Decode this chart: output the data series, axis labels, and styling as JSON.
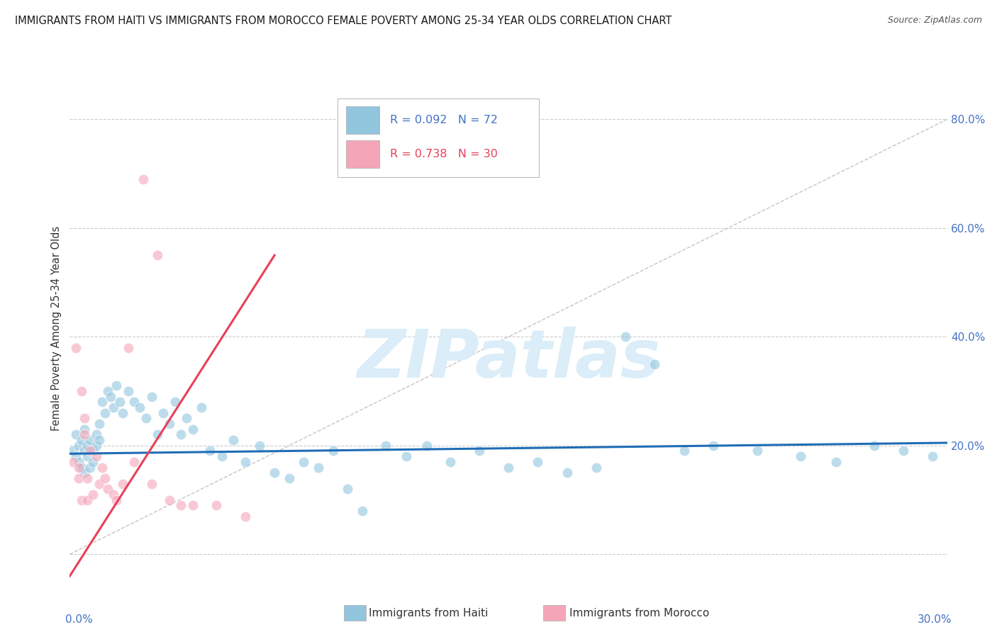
{
  "title": "IMMIGRANTS FROM HAITI VS IMMIGRANTS FROM MOROCCO FEMALE POVERTY AMONG 25-34 YEAR OLDS CORRELATION CHART",
  "source": "Source: ZipAtlas.com",
  "ylabel": "Female Poverty Among 25-34 Year Olds",
  "xlim": [
    0.0,
    0.3
  ],
  "ylim": [
    -0.05,
    0.88
  ],
  "haiti_color": "#92c5de",
  "morocco_color": "#f4a5b8",
  "haiti_line_color": "#1f6db5",
  "morocco_line_color": "#e8405a",
  "haiti_R": 0.092,
  "haiti_N": 72,
  "morocco_R": 0.738,
  "morocco_N": 30,
  "haiti_scatter_x": [
    0.001,
    0.002,
    0.002,
    0.003,
    0.003,
    0.004,
    0.004,
    0.005,
    0.005,
    0.005,
    0.006,
    0.006,
    0.007,
    0.007,
    0.008,
    0.008,
    0.009,
    0.009,
    0.01,
    0.01,
    0.011,
    0.012,
    0.013,
    0.014,
    0.015,
    0.016,
    0.017,
    0.018,
    0.02,
    0.022,
    0.024,
    0.026,
    0.028,
    0.03,
    0.032,
    0.034,
    0.036,
    0.038,
    0.04,
    0.042,
    0.045,
    0.048,
    0.052,
    0.056,
    0.06,
    0.065,
    0.07,
    0.075,
    0.08,
    0.085,
    0.09,
    0.095,
    0.1,
    0.108,
    0.115,
    0.122,
    0.13,
    0.14,
    0.15,
    0.16,
    0.17,
    0.18,
    0.19,
    0.2,
    0.21,
    0.22,
    0.235,
    0.25,
    0.262,
    0.275,
    0.285,
    0.295
  ],
  "haiti_scatter_y": [
    0.19,
    0.18,
    0.22,
    0.2,
    0.17,
    0.21,
    0.16,
    0.19,
    0.23,
    0.15,
    0.2,
    0.18,
    0.16,
    0.21,
    0.19,
    0.17,
    0.22,
    0.2,
    0.24,
    0.21,
    0.28,
    0.26,
    0.3,
    0.29,
    0.27,
    0.31,
    0.28,
    0.26,
    0.3,
    0.28,
    0.27,
    0.25,
    0.29,
    0.22,
    0.26,
    0.24,
    0.28,
    0.22,
    0.25,
    0.23,
    0.27,
    0.19,
    0.18,
    0.21,
    0.17,
    0.2,
    0.15,
    0.14,
    0.17,
    0.16,
    0.19,
    0.12,
    0.08,
    0.2,
    0.18,
    0.2,
    0.17,
    0.19,
    0.16,
    0.17,
    0.15,
    0.16,
    0.4,
    0.35,
    0.19,
    0.2,
    0.19,
    0.18,
    0.17,
    0.2,
    0.19,
    0.18
  ],
  "morocco_scatter_x": [
    0.001,
    0.002,
    0.003,
    0.003,
    0.004,
    0.004,
    0.005,
    0.005,
    0.006,
    0.006,
    0.007,
    0.008,
    0.009,
    0.01,
    0.011,
    0.012,
    0.013,
    0.015,
    0.016,
    0.018,
    0.02,
    0.022,
    0.025,
    0.028,
    0.03,
    0.034,
    0.038,
    0.042,
    0.05,
    0.06
  ],
  "morocco_scatter_y": [
    0.17,
    0.38,
    0.16,
    0.14,
    0.3,
    0.1,
    0.25,
    0.22,
    0.1,
    0.14,
    0.19,
    0.11,
    0.18,
    0.13,
    0.16,
    0.14,
    0.12,
    0.11,
    0.1,
    0.13,
    0.38,
    0.17,
    0.69,
    0.13,
    0.55,
    0.1,
    0.09,
    0.09,
    0.09,
    0.07
  ],
  "background_color": "#ffffff",
  "grid_color": "#cccccc",
  "diag_color": "#bbbbbb",
  "watermark": "ZIPatlas",
  "watermark_color": "#daedf8",
  "right_ytick_vals": [
    0.0,
    0.2,
    0.4,
    0.6,
    0.8
  ],
  "right_yticklabels": [
    "",
    "20.0%",
    "40.0%",
    "60.0%",
    "80.0%"
  ]
}
